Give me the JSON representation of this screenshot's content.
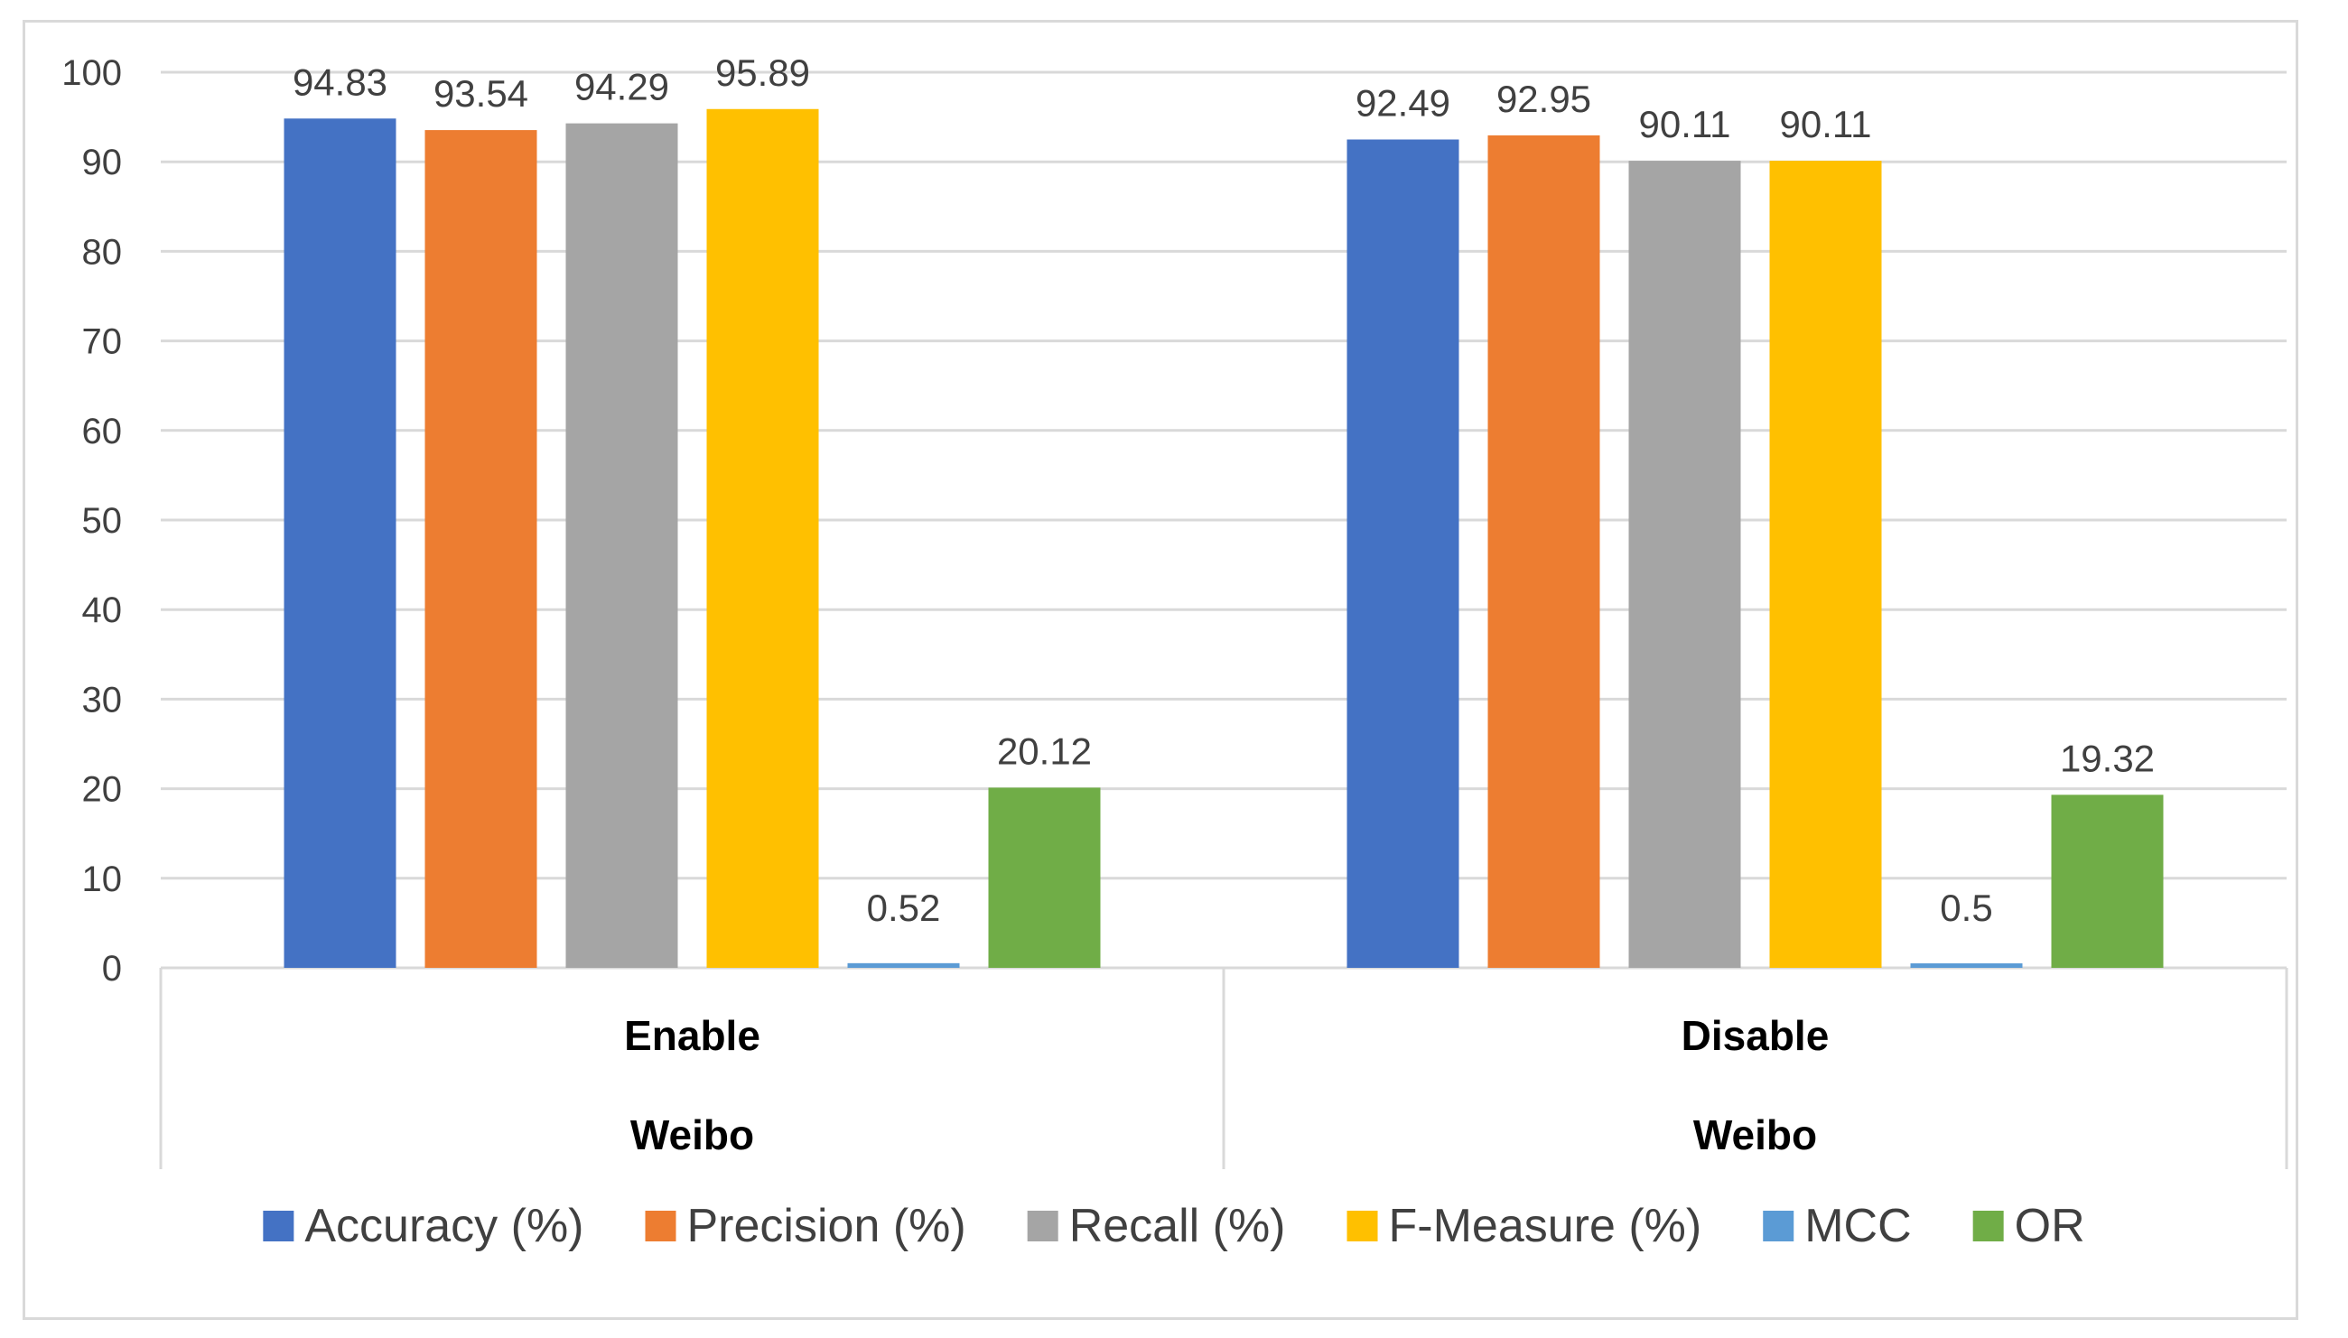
{
  "chart_data": {
    "type": "bar",
    "title": "",
    "xlabel": "",
    "ylabel": "",
    "ylim": [
      0,
      100
    ],
    "yticks": [
      0,
      10,
      20,
      30,
      40,
      50,
      60,
      70,
      80,
      90,
      100
    ],
    "grid": true,
    "legend_position": "bottom",
    "categories": [
      {
        "name": "Enable",
        "group": "Weibo"
      },
      {
        "name": "Disable",
        "group": "Weibo"
      }
    ],
    "series": [
      {
        "name": "Accuracy (%)",
        "color": "#4472C4",
        "values": [
          94.83,
          92.49
        ],
        "labels": [
          "94.83",
          "92.49"
        ]
      },
      {
        "name": "Precision (%)",
        "color": "#ED7D31",
        "values": [
          93.54,
          92.95
        ],
        "labels": [
          "93.54",
          "92.95"
        ]
      },
      {
        "name": "Recall (%)",
        "color": "#A5A5A5",
        "values": [
          94.29,
          90.11
        ],
        "labels": [
          "94.29",
          "90.11"
        ]
      },
      {
        "name": "F-Measure (%)",
        "color": "#FFC000",
        "values": [
          95.89,
          90.11
        ],
        "labels": [
          "95.89",
          "90.11"
        ]
      },
      {
        "name": "MCC",
        "color": "#5B9BD5",
        "values": [
          0.52,
          0.5
        ],
        "labels": [
          "0.52",
          "0.5"
        ]
      },
      {
        "name": "OR",
        "color": "#70AD47",
        "values": [
          20.12,
          19.32
        ],
        "labels": [
          "20.12",
          "19.32"
        ]
      }
    ]
  }
}
